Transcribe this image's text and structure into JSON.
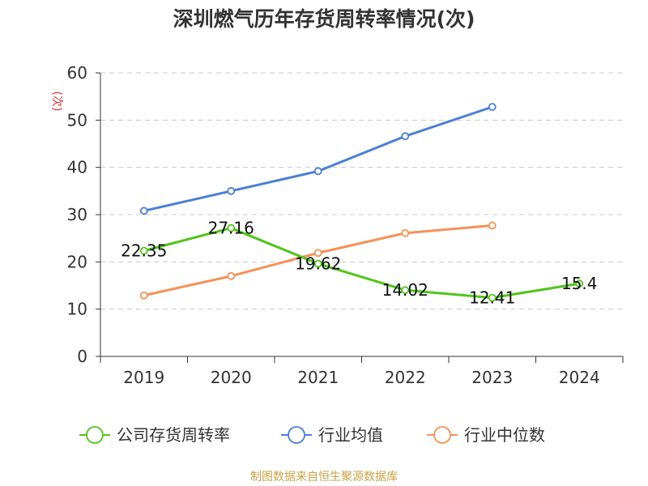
{
  "title": "深圳燃气历年存货周转率情况(次)",
  "source": "制图数据来自恒生聚源数据库",
  "chart_data": {
    "type": "line",
    "title": "深圳燃气历年存货周转率情况(次)",
    "ylabel": "(次)",
    "categories": [
      "2019",
      "2020",
      "2021",
      "2022",
      "2023",
      "2024"
    ],
    "ylim": [
      0,
      60
    ],
    "yticks": [
      0,
      10,
      20,
      30,
      40,
      50,
      60
    ],
    "grid": true,
    "legend_position": "bottom",
    "series": [
      {
        "name": "公司存货周转率",
        "color": "#52c41a",
        "values": [
          22.35,
          27.16,
          19.62,
          14.02,
          12.41,
          15.4
        ],
        "labels": [
          "22.35",
          "27.16",
          "19.62",
          "14.02",
          "12.41",
          "15.4"
        ]
      },
      {
        "name": "行业均值",
        "color": "#4a7fd6",
        "values": [
          30.8,
          35.0,
          39.2,
          46.6,
          52.8,
          null
        ]
      },
      {
        "name": "行业中位数",
        "color": "#f39257",
        "values": [
          12.9,
          17.0,
          21.9,
          26.1,
          27.7,
          null
        ]
      }
    ]
  }
}
